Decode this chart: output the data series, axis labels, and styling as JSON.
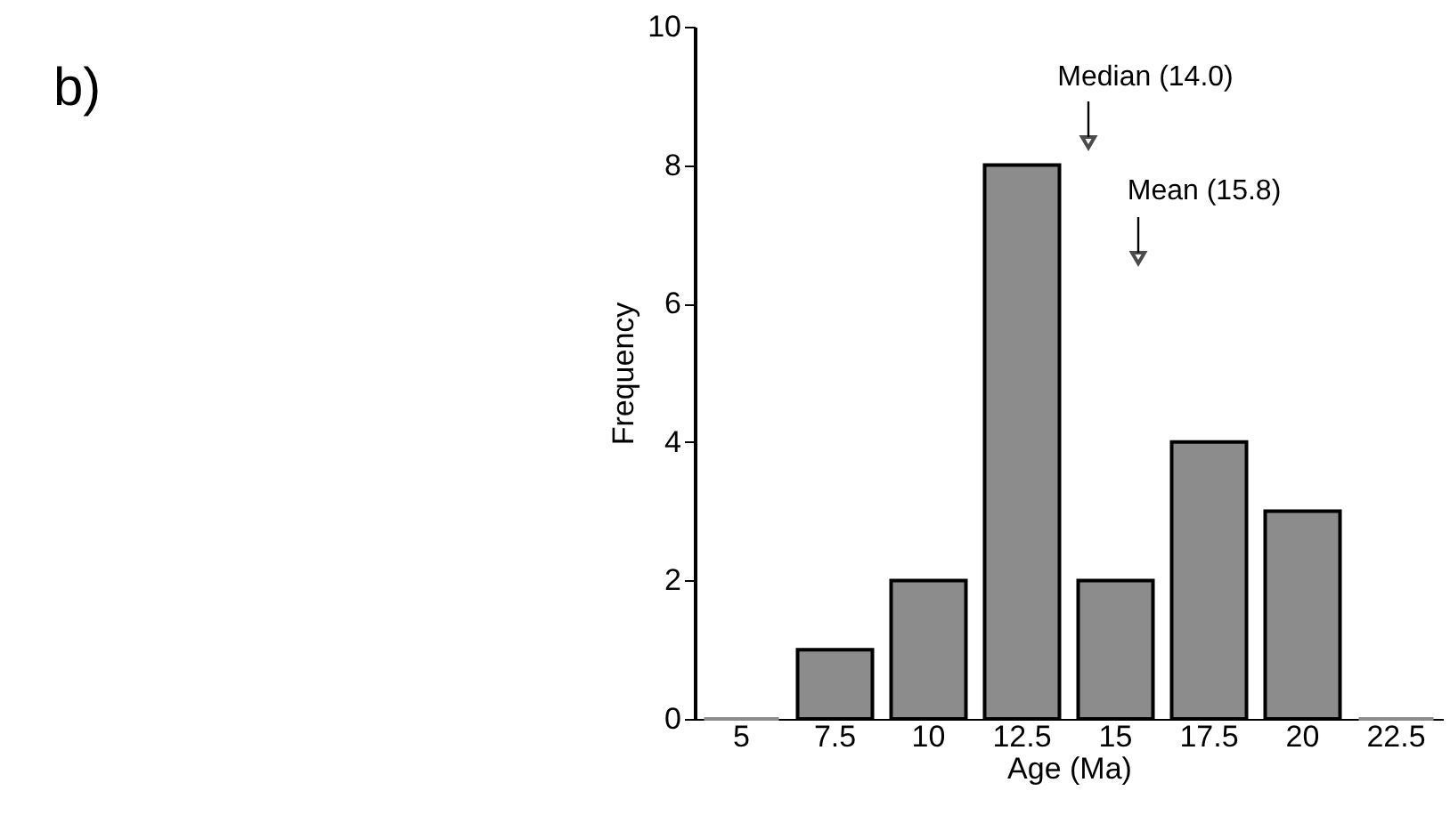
{
  "chart_data": {
    "type": "bar",
    "categories": [
      "5",
      "7.5",
      "10",
      "12.5",
      "15",
      "17.5",
      "20",
      "22.5"
    ],
    "values": [
      0,
      1,
      2,
      8,
      2,
      4,
      3,
      0
    ],
    "color": "#8c8c8c",
    "xlabel": "Age (Ma)",
    "ylabel": "Frequency",
    "ylim": [
      0,
      10
    ],
    "yticks": [
      0,
      2,
      4,
      6,
      8,
      10
    ],
    "grid": false,
    "annotations": [
      "b)",
      "Median (14.0)",
      "Mean (15.8)"
    ]
  }
}
